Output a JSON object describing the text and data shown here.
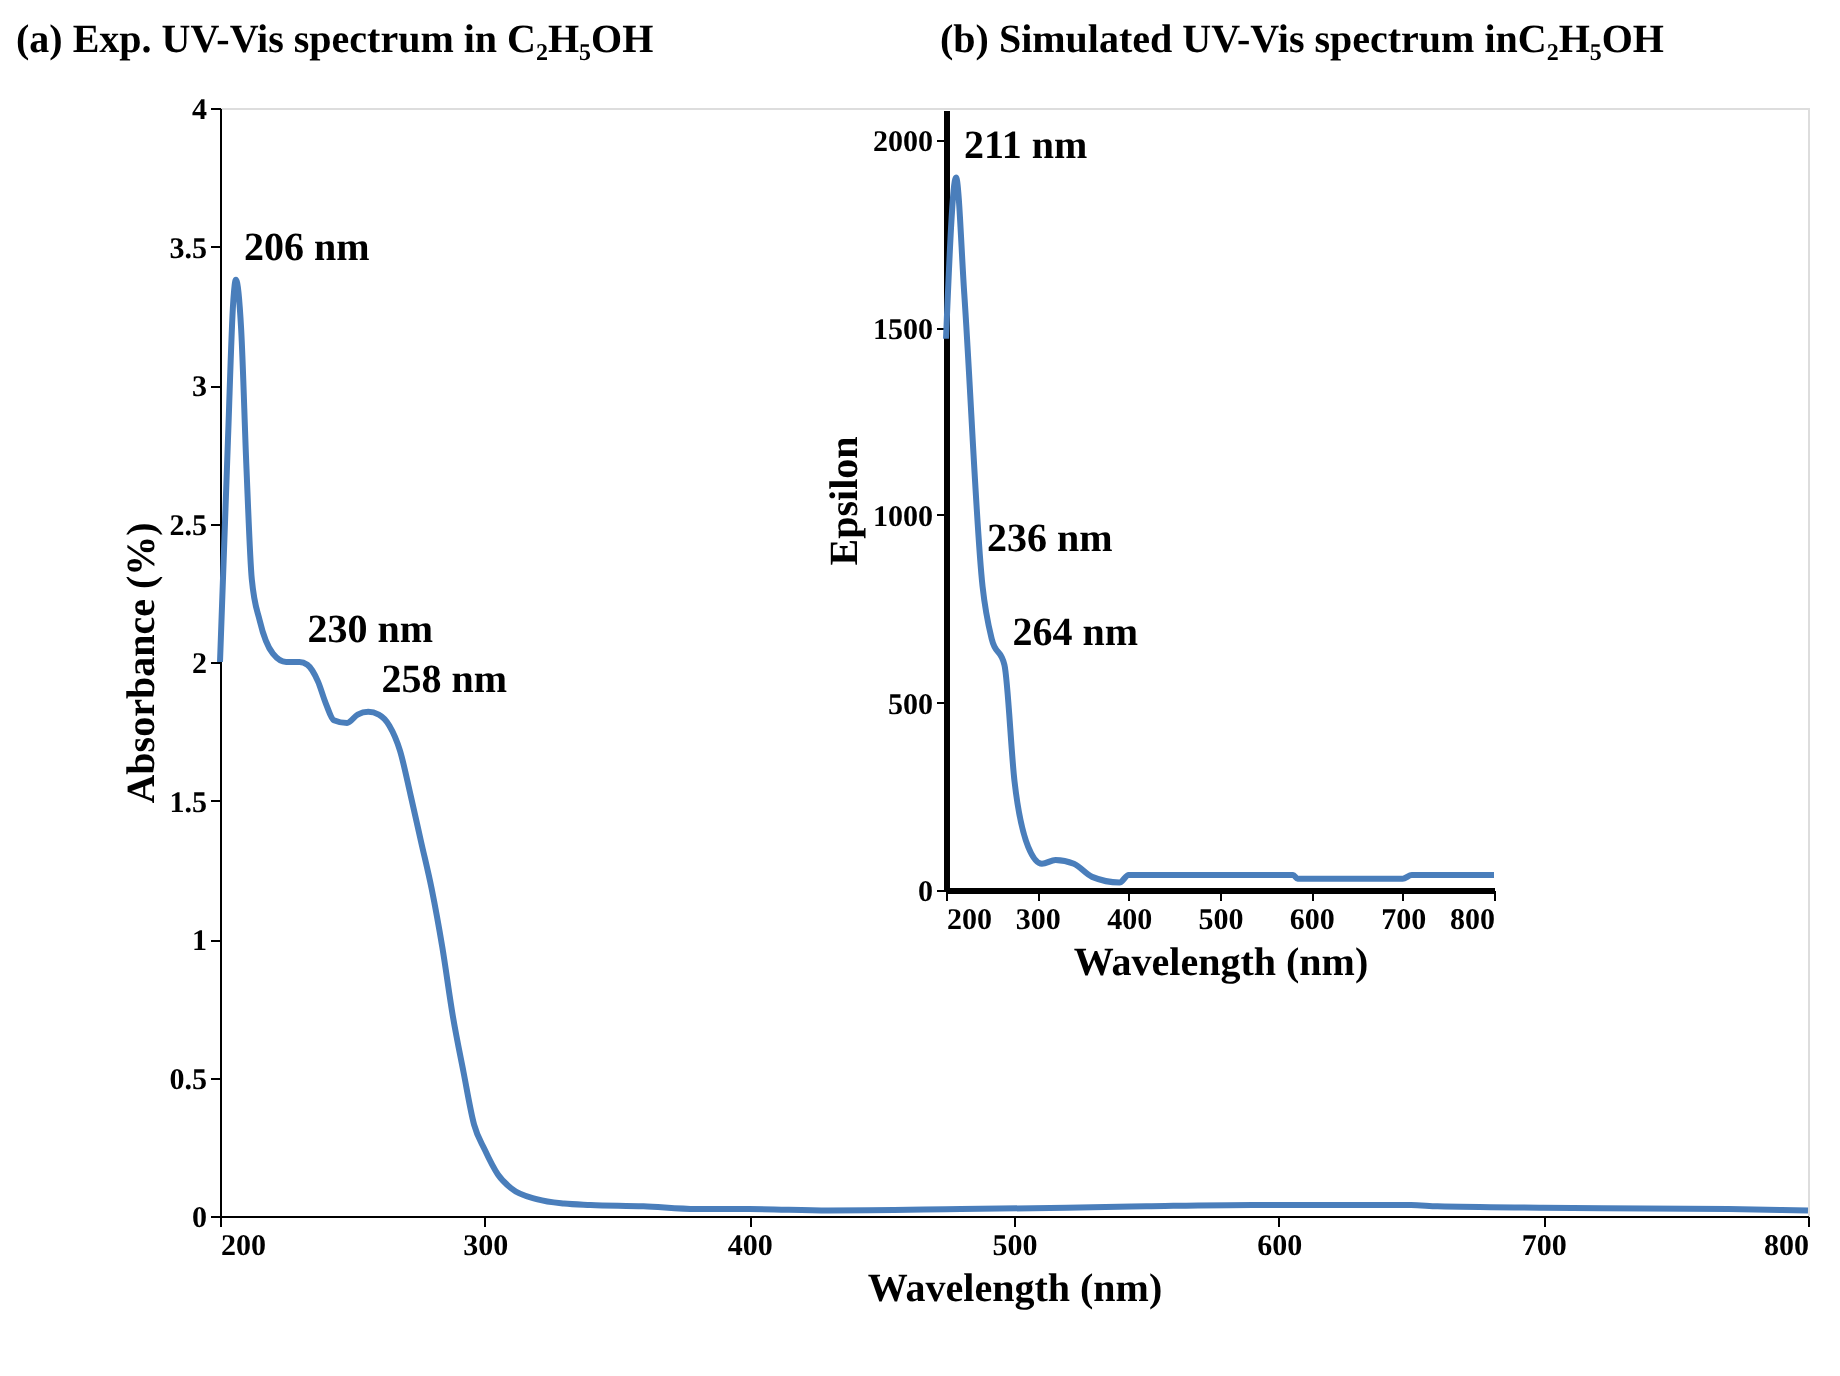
{
  "chart_data": [
    {
      "type": "line",
      "title": "(a) Exp. UV-Vis  spectrum in C₂H₅OH",
      "xlabel": "Wavelength (nm)",
      "ylabel": "Absorbance (%)",
      "xlim": [
        200,
        800
      ],
      "ylim": [
        0,
        4
      ],
      "xticks": [
        200,
        300,
        400,
        500,
        600,
        700,
        800
      ],
      "yticks": [
        0,
        0.5,
        1,
        1.5,
        2,
        2.5,
        3,
        3.5,
        4
      ],
      "grid": false,
      "series": [
        {
          "color": "#4a7ebb",
          "x": [
            200,
            203,
            205,
            206,
            208,
            210,
            212,
            215,
            220,
            225,
            230,
            233,
            237,
            240,
            243,
            248,
            252,
            256,
            260,
            264,
            268,
            272,
            276,
            280,
            284,
            288,
            292,
            296,
            300,
            305,
            310,
            320,
            330,
            340,
            360,
            380,
            400,
            430,
            480,
            520,
            550,
            590,
            650,
            660,
            700,
            770,
            800
          ],
          "values": [
            2.0,
            2.8,
            3.3,
            3.38,
            3.2,
            2.7,
            2.3,
            2.15,
            2.03,
            2.0,
            2.0,
            1.99,
            1.93,
            1.85,
            1.79,
            1.78,
            1.81,
            1.82,
            1.81,
            1.77,
            1.68,
            1.52,
            1.35,
            1.18,
            0.97,
            0.72,
            0.52,
            0.33,
            0.24,
            0.15,
            0.1,
            0.06,
            0.045,
            0.04,
            0.035,
            0.025,
            0.025,
            0.02,
            0.025,
            0.03,
            0.035,
            0.04,
            0.04,
            0.035,
            0.03,
            0.025,
            0.02
          ]
        }
      ],
      "annotations": [
        {
          "text": "206 nm",
          "x": 206,
          "y": 3.38
        },
        {
          "text": "230 nm",
          "x": 230,
          "y": 2.0
        },
        {
          "text": "258 nm",
          "x": 258,
          "y": 1.82
        }
      ]
    },
    {
      "type": "line",
      "title": "(b) Simulated UV-Vis spectrum inC₂H₅OH",
      "xlabel": "Wavelength (nm)",
      "ylabel": "Epsilon",
      "xlim": [
        200,
        800
      ],
      "ylim": [
        0,
        2080
      ],
      "xticks": [
        200,
        300,
        400,
        500,
        600,
        700,
        800
      ],
      "yticks": [
        0,
        500,
        1000,
        1500,
        2000
      ],
      "grid": false,
      "series": [
        {
          "color": "#4a7ebb",
          "x": [
            200,
            211,
            220,
            240,
            250,
            264,
            275,
            290,
            305,
            320,
            340,
            360,
            390,
            400,
            580,
            585,
            700,
            710,
            800
          ],
          "values": [
            1470,
            1900,
            1590,
            810,
            670,
            600,
            290,
            115,
            70,
            80,
            70,
            35,
            20,
            40,
            40,
            30,
            30,
            40,
            40
          ]
        }
      ],
      "annotations": [
        {
          "text": "211 nm",
          "x": 211,
          "y": 1900
        },
        {
          "text": "236 nm",
          "x": 236,
          "y": 850
        },
        {
          "text": "264 nm",
          "x": 264,
          "y": 600
        }
      ]
    }
  ]
}
